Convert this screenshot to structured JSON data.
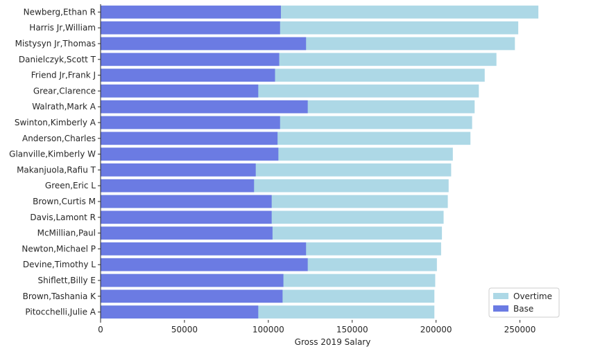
{
  "chart_data": {
    "type": "bar",
    "orientation": "horizontal",
    "stacking": "overlay",
    "categories": [
      "Newberg,Ethan R",
      "Harris Jr,William",
      "Mistysyn Jr,Thomas",
      "Danielczyk,Scott T",
      "Friend Jr,Frank J",
      "Grear,Clarence",
      "Walrath,Mark A",
      "Swinton,Kimberly A",
      "Anderson,Charles",
      "Glanville,Kimberly W",
      "Makanjuola,Rafiu T",
      "Green,Eric L",
      "Brown,Curtis M",
      "Davis,Lamont R",
      "McMillian,Paul",
      "Newton,Michael P",
      "Devine,Timothy L",
      "Shiflett,Billy E",
      "Brown,Tashania K",
      "Pitocchelli,Julie A"
    ],
    "series": [
      {
        "name": "Overtime",
        "color": "#add8e6",
        "values": [
          261000,
          249000,
          247000,
          236000,
          229000,
          225500,
          223000,
          221500,
          220500,
          210000,
          209000,
          207500,
          207000,
          204500,
          203500,
          203000,
          200500,
          199500,
          199000,
          199000
        ]
      },
      {
        "name": "Base",
        "color": "#6b7be3",
        "values": [
          107500,
          107000,
          122500,
          106500,
          104000,
          94000,
          123500,
          107000,
          105500,
          106000,
          92500,
          91500,
          102000,
          102000,
          102500,
          122500,
          123500,
          109000,
          108500,
          94000
        ]
      }
    ],
    "xlabel": "Gross 2019 Salary",
    "ylabel": "",
    "xlim": [
      0,
      275000
    ],
    "xticks": [
      0,
      50000,
      100000,
      150000,
      200000,
      250000
    ],
    "xtick_labels": [
      "0",
      "50000",
      "100000",
      "150000",
      "200000",
      "250000"
    ],
    "grid": false,
    "legend": {
      "placement": "bottom-right",
      "entries": [
        "Overtime",
        "Base"
      ]
    }
  }
}
